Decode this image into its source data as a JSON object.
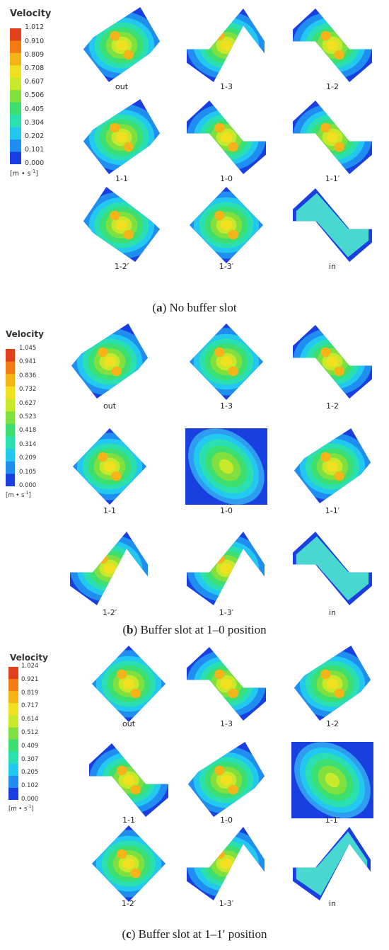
{
  "figure": {
    "legend_title": "Velocity",
    "unit_base": "[m • s",
    "unit_exp": "-1",
    "unit_close": "]",
    "panels": [
      {
        "id": "a",
        "caption_letter": "a",
        "caption_text": "No buffer slot",
        "ticks": [
          "1.012",
          "0.910",
          "0.809",
          "0.708",
          "0.607",
          "0.506",
          "0.405",
          "0.304",
          "0.202",
          "0.101",
          "0.000"
        ],
        "slices": [
          {
            "label": "out",
            "shape": "diamond-r"
          },
          {
            "label": "1-3",
            "shape": "zig"
          },
          {
            "label": "1-2",
            "shape": "zag"
          },
          {
            "label": "1-1",
            "shape": "diamond-r"
          },
          {
            "label": "1-0",
            "shape": "zag"
          },
          {
            "label": "1-1′",
            "shape": "zag"
          },
          {
            "label": "1-2′",
            "shape": "diamond-l"
          },
          {
            "label": "1-3′",
            "shape": "diamond"
          },
          {
            "label": "in",
            "shape": "zag-cyan"
          }
        ]
      },
      {
        "id": "b",
        "caption_letter": "b",
        "caption_text": "Buffer slot at 1–0 position",
        "ticks": [
          "1.045",
          "0.941",
          "0.836",
          "0.732",
          "0.627",
          "0.523",
          "0.418",
          "0.314",
          "0.209",
          "0.105",
          "0.000"
        ],
        "slices": [
          {
            "label": "out",
            "shape": "diamond-r"
          },
          {
            "label": "1-3",
            "shape": "diamond"
          },
          {
            "label": "1-2",
            "shape": "zag"
          },
          {
            "label": "1-1",
            "shape": "diamond"
          },
          {
            "label": "1-0",
            "shape": "square"
          },
          {
            "label": "1-1′",
            "shape": "diamond-r"
          },
          {
            "label": "1-2′",
            "shape": "zig"
          },
          {
            "label": "1-3′",
            "shape": "zig"
          },
          {
            "label": "in",
            "shape": "zag-cyan"
          }
        ]
      },
      {
        "id": "c",
        "caption_letter": "c",
        "caption_text": "Buffer slot at 1–1′ position",
        "ticks": [
          "1.024",
          "0.921",
          "0.819",
          "0.717",
          "0.614",
          "0.512",
          "0.409",
          "0.307",
          "0.205",
          "0.102",
          "0.000"
        ],
        "slices": [
          {
            "label": "out",
            "shape": "diamond"
          },
          {
            "label": "1-3",
            "shape": "zag"
          },
          {
            "label": "1-2",
            "shape": "diamond-r"
          },
          {
            "label": "1-1",
            "shape": "zag"
          },
          {
            "label": "1-0",
            "shape": "diamond-r"
          },
          {
            "label": "1-1′",
            "shape": "square"
          },
          {
            "label": "1-2′",
            "shape": "diamond"
          },
          {
            "label": "1-3′",
            "shape": "zig"
          },
          {
            "label": "in",
            "shape": "zig-cyan"
          }
        ]
      }
    ]
  }
}
